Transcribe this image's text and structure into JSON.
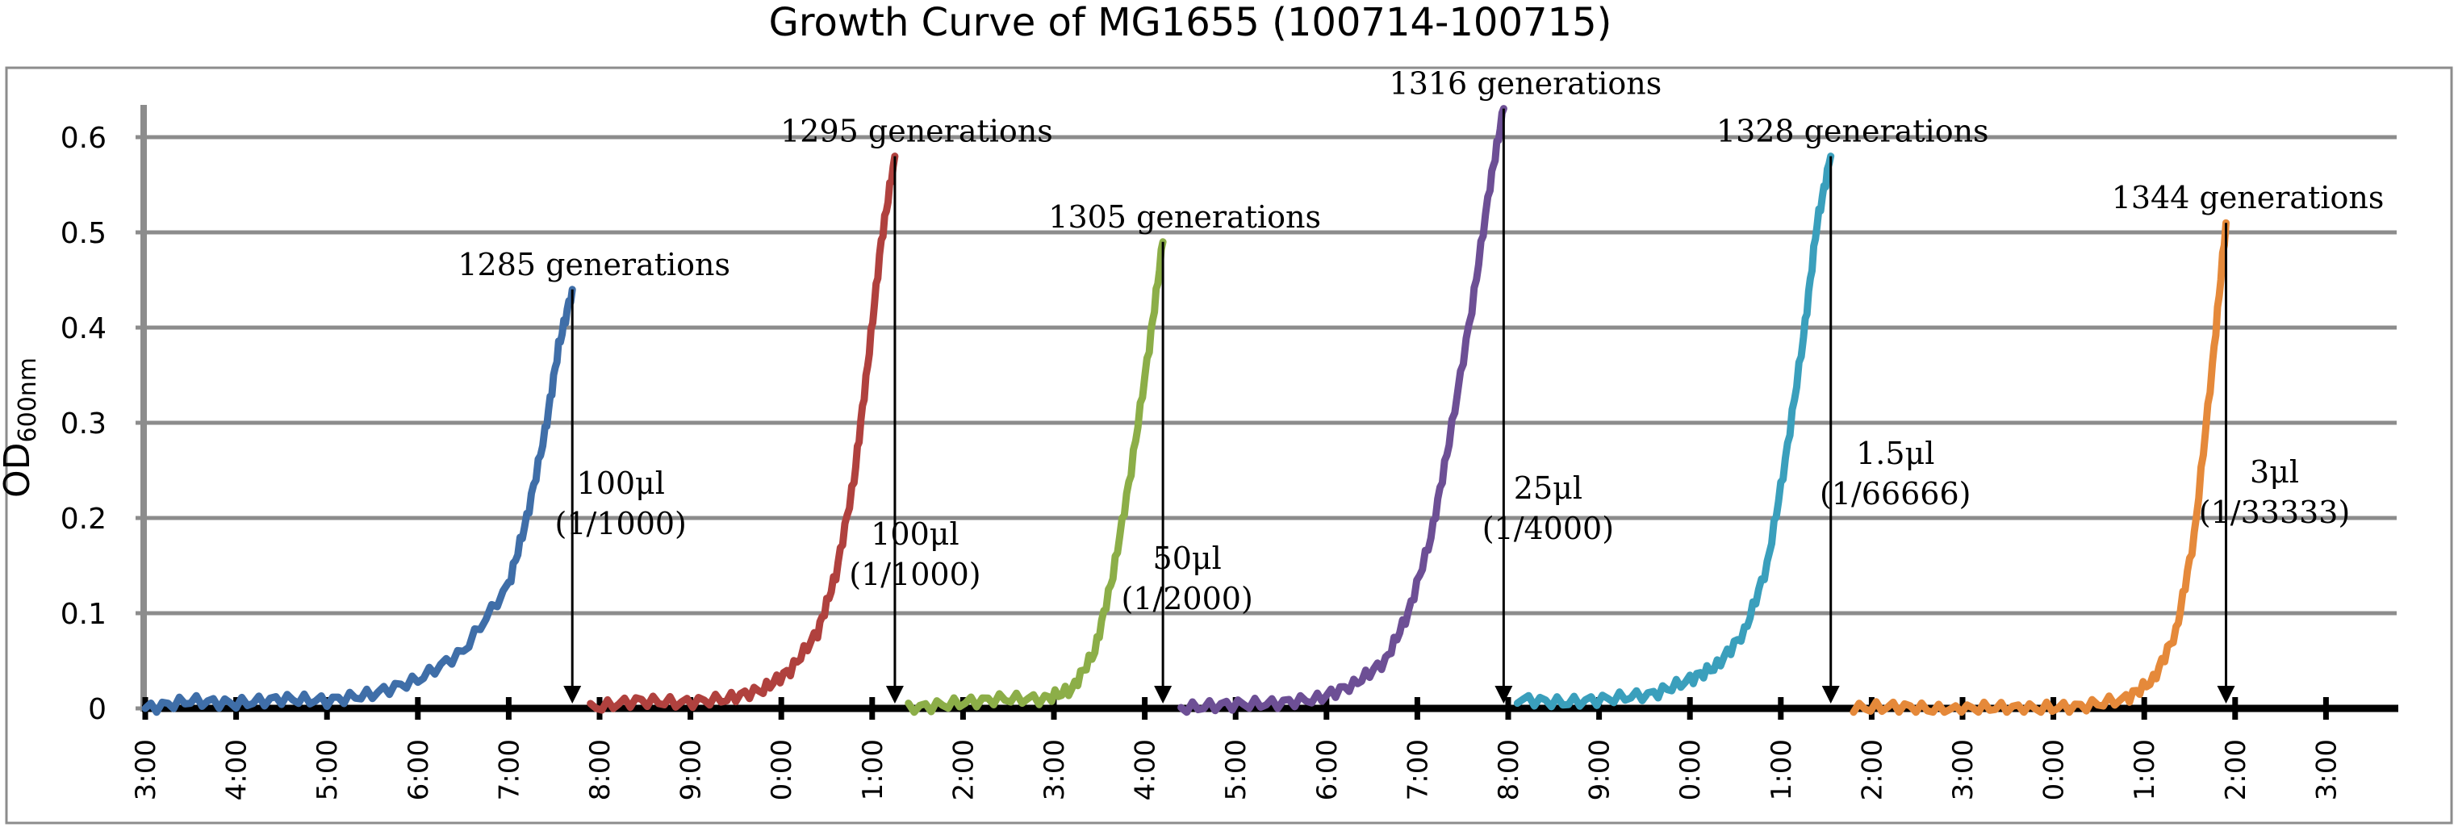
{
  "chart_data": {
    "type": "line",
    "title": "Growth Curve of MG1655 (100714-100715)",
    "ylabel": "OD",
    "ylabel_sub": "600nm",
    "xlabel": "",
    "ylim": [
      0,
      0.65
    ],
    "yticks": [
      "0",
      "0.1",
      "0.2",
      "0.3",
      "0.4",
      "0.5",
      "0.6"
    ],
    "x_tick_labels": [
      "3:00",
      "4:00",
      "5:00",
      "6:00",
      "7:00",
      "8:00",
      "9:00",
      "0:00",
      "1:00",
      "2:00",
      "3:00",
      "4:00",
      "5:00",
      "6:00",
      "7:00",
      "8:00",
      "9:00",
      "0:00",
      "1:00",
      "2:00",
      "3:00",
      "0:00",
      "1:00",
      "2:00",
      "3:00"
    ],
    "grid": "horizontal",
    "legend": "none",
    "colors": [
      "#3f6ea8",
      "#b0413e",
      "#8cae48",
      "#6d4f95",
      "#3a9fbc",
      "#e5893a"
    ],
    "series": [
      {
        "color": "#3f6ea8",
        "x": [
          0.0,
          0.5,
          1.0,
          1.5,
          2.0,
          2.5,
          3.0,
          3.5,
          4.0,
          4.2,
          4.4,
          4.55,
          4.7
        ],
        "y": [
          0.0,
          0.008,
          0.005,
          0.01,
          0.008,
          0.015,
          0.03,
          0.06,
          0.13,
          0.2,
          0.29,
          0.38,
          0.44
        ]
      },
      {
        "color": "#b0413e",
        "x": [
          4.9,
          5.4,
          5.9,
          6.4,
          6.8,
          7.1,
          7.4,
          7.6,
          7.8,
          7.95,
          8.1,
          8.25
        ],
        "y": [
          0.0,
          0.008,
          0.006,
          0.01,
          0.02,
          0.04,
          0.08,
          0.14,
          0.24,
          0.36,
          0.49,
          0.58
        ]
      },
      {
        "color": "#8cae48",
        "x": [
          8.4,
          8.9,
          9.4,
          9.9,
          10.2,
          10.45,
          10.65,
          10.85,
          11.05,
          11.2
        ],
        "y": [
          0.0,
          0.005,
          0.01,
          0.01,
          0.02,
          0.06,
          0.14,
          0.25,
          0.38,
          0.49
        ]
      },
      {
        "color": "#6d4f95",
        "x": [
          11.4,
          11.9,
          12.4,
          12.9,
          13.3,
          13.65,
          13.9,
          14.15,
          14.35,
          14.6,
          14.8,
          14.95
        ],
        "y": [
          0.0,
          0.004,
          0.005,
          0.01,
          0.025,
          0.05,
          0.1,
          0.18,
          0.28,
          0.42,
          0.55,
          0.63
        ]
      },
      {
        "color": "#3a9fbc",
        "x": [
          15.1,
          15.6,
          16.1,
          16.6,
          17.0,
          17.3,
          17.6,
          17.85,
          18.05,
          18.25,
          18.4,
          18.55
        ],
        "y": [
          0.01,
          0.006,
          0.01,
          0.015,
          0.03,
          0.045,
          0.08,
          0.15,
          0.26,
          0.39,
          0.51,
          0.58
        ]
      },
      {
        "color": "#e5893a",
        "x": [
          18.8,
          19.3,
          19.8,
          20.3,
          20.8,
          21.3,
          21.8,
          22.1,
          22.35,
          22.55,
          22.75,
          22.9
        ],
        "y": [
          0.0,
          0.002,
          -0.002,
          0.001,
          0.0,
          0.002,
          0.01,
          0.03,
          0.08,
          0.18,
          0.36,
          0.51
        ]
      }
    ],
    "annotations": [
      {
        "x": 4.7,
        "y": 0.44,
        "generations": "1285 generations",
        "volume": "100μl",
        "dilution": "(1/1000)"
      },
      {
        "x": 8.25,
        "y": 0.58,
        "generations": "1295 generations",
        "volume": "100μl",
        "dilution": "(1/1000)"
      },
      {
        "x": 11.2,
        "y": 0.49,
        "generations": "1305 generations",
        "volume": "50μl",
        "dilution": "(1/2000)"
      },
      {
        "x": 14.95,
        "y": 0.63,
        "generations": "1316 generations",
        "volume": "25μl",
        "dilution": "(1/4000)"
      },
      {
        "x": 18.55,
        "y": 0.58,
        "generations": "1328 generations",
        "volume": "1.5μl",
        "dilution": "(1/66666)"
      },
      {
        "x": 22.9,
        "y": 0.51,
        "generations": "1344 generations",
        "volume": "3μl",
        "dilution": "(1/33333)"
      }
    ]
  }
}
